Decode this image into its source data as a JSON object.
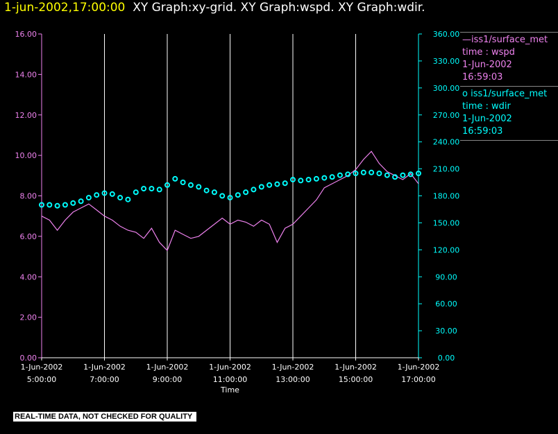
{
  "title": {
    "timestamp": "1-jun-2002,17:00:00",
    "graphs": "XY Graph:xy-grid.  XY Graph:wspd.  XY Graph:wdir."
  },
  "legend": [
    {
      "symbol": "—",
      "source": "iss1/surface_met",
      "var": "time : wspd",
      "date": "1-Jun-2002",
      "time": "16:59:03",
      "color": "#ee82ee"
    },
    {
      "symbol": "o",
      "source": "iss1/surface_met",
      "var": "time : wdir",
      "date": "1-Jun-2002",
      "time": "16:59:03",
      "color": "#00ffff"
    }
  ],
  "footer": "REAL-TIME DATA, NOT CHECKED FOR QUALITY",
  "chart_data": {
    "type": "line",
    "xlabel": "Time",
    "x_ticks": [
      {
        "date": "1-Jun-2002",
        "time": "5:00:00"
      },
      {
        "date": "1-Jun-2002",
        "time": "7:00:00"
      },
      {
        "date": "1-Jun-2002",
        "time": "9:00:00"
      },
      {
        "date": "1-Jun-2002",
        "time": "11:00:00"
      },
      {
        "date": "1-Jun-2002",
        "time": "13:00:00"
      },
      {
        "date": "1-Jun-2002",
        "time": "15:00:00"
      },
      {
        "date": "1-Jun-2002",
        "time": "17:00:00"
      }
    ],
    "xlim_hours": [
      5,
      17
    ],
    "vertical_grid": true,
    "y_left": {
      "ticks": [
        "0.00",
        "2.00",
        "4.00",
        "6.00",
        "8.00",
        "10.00",
        "12.00",
        "14.00",
        "16.00"
      ],
      "lim": [
        0,
        16
      ],
      "color": "#ee82ee"
    },
    "y_right": {
      "ticks": [
        "0.00",
        "30.00",
        "60.00",
        "90.00",
        "120.00",
        "150.00",
        "180.00",
        "210.00",
        "240.00",
        "270.00",
        "300.00",
        "330.00",
        "360.00"
      ],
      "lim": [
        0,
        360
      ],
      "color": "#00ffff"
    },
    "series": [
      {
        "name": "wspd",
        "axis": "left",
        "style": "line",
        "color": "#ee82ee",
        "x": [
          5.0,
          5.25,
          5.5,
          5.75,
          6.0,
          6.25,
          6.5,
          6.75,
          7.0,
          7.25,
          7.5,
          7.75,
          8.0,
          8.25,
          8.5,
          8.75,
          9.0,
          9.25,
          9.5,
          9.75,
          10.0,
          10.25,
          10.5,
          10.75,
          11.0,
          11.25,
          11.5,
          11.75,
          12.0,
          12.25,
          12.5,
          12.75,
          13.0,
          13.25,
          13.5,
          13.75,
          14.0,
          14.25,
          14.5,
          14.75,
          15.0,
          15.25,
          15.5,
          15.75,
          16.0,
          16.25,
          16.5,
          16.75,
          17.0
        ],
        "y": [
          7.0,
          6.8,
          6.3,
          6.8,
          7.2,
          7.4,
          7.6,
          7.3,
          7.0,
          6.8,
          6.5,
          6.3,
          6.2,
          5.9,
          6.4,
          5.7,
          5.3,
          6.3,
          6.1,
          5.9,
          6.0,
          6.3,
          6.6,
          6.9,
          6.6,
          6.8,
          6.7,
          6.5,
          6.8,
          6.6,
          5.7,
          6.4,
          6.6,
          7.0,
          7.4,
          7.8,
          8.4,
          8.6,
          8.8,
          9.0,
          9.3,
          9.8,
          10.2,
          9.6,
          9.2,
          9.0,
          8.8,
          9.1,
          8.6
        ]
      },
      {
        "name": "wdir",
        "axis": "right",
        "style": "markers",
        "color": "#00ffff",
        "x": [
          5.0,
          5.25,
          5.5,
          5.75,
          6.0,
          6.25,
          6.5,
          6.75,
          7.0,
          7.25,
          7.5,
          7.75,
          8.0,
          8.25,
          8.5,
          8.75,
          9.0,
          9.25,
          9.5,
          9.75,
          10.0,
          10.25,
          10.5,
          10.75,
          11.0,
          11.25,
          11.5,
          11.75,
          12.0,
          12.25,
          12.5,
          12.75,
          13.0,
          13.25,
          13.5,
          13.75,
          14.0,
          14.25,
          14.5,
          14.75,
          15.0,
          15.25,
          15.5,
          15.75,
          16.0,
          16.25,
          16.5,
          16.75,
          17.0
        ],
        "y": [
          170,
          170,
          169,
          170,
          172,
          174,
          178,
          181,
          183,
          182,
          178,
          176,
          184,
          188,
          188,
          187,
          192,
          199,
          195,
          192,
          190,
          186,
          184,
          180,
          178,
          181,
          184,
          187,
          190,
          192,
          193,
          194,
          198,
          197,
          198,
          199,
          200,
          201,
          203,
          204,
          205,
          206,
          206,
          205,
          203,
          201,
          203,
          204,
          205
        ]
      }
    ]
  }
}
